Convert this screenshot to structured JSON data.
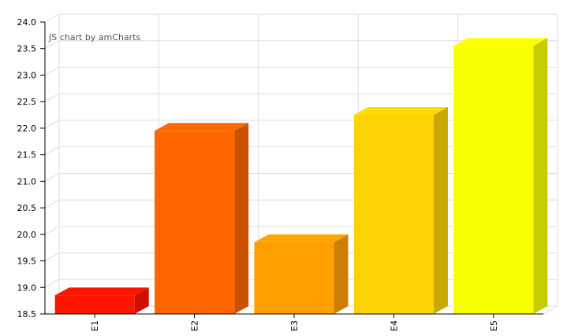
{
  "credit": "JS chart by amCharts",
  "chart_data": {
    "type": "bar",
    "title": "",
    "xlabel": "",
    "ylabel": "",
    "categories": [
      "E1",
      "E2",
      "E3",
      "E4",
      "E5"
    ],
    "values": [
      18.85,
      21.95,
      19.85,
      22.25,
      23.55
    ],
    "colors": [
      "#FF1500",
      "#FF6600",
      "#FF9E01",
      "#FCD202",
      "#F8FF01"
    ],
    "ylim": [
      18.5,
      24.0
    ],
    "yticks": [
      "18.5",
      "19.0",
      "19.5",
      "20.0",
      "20.5",
      "21.0",
      "21.5",
      "22.0",
      "22.5",
      "23.0",
      "23.5",
      "24.0"
    ],
    "grid": true,
    "style": "3d-column"
  }
}
